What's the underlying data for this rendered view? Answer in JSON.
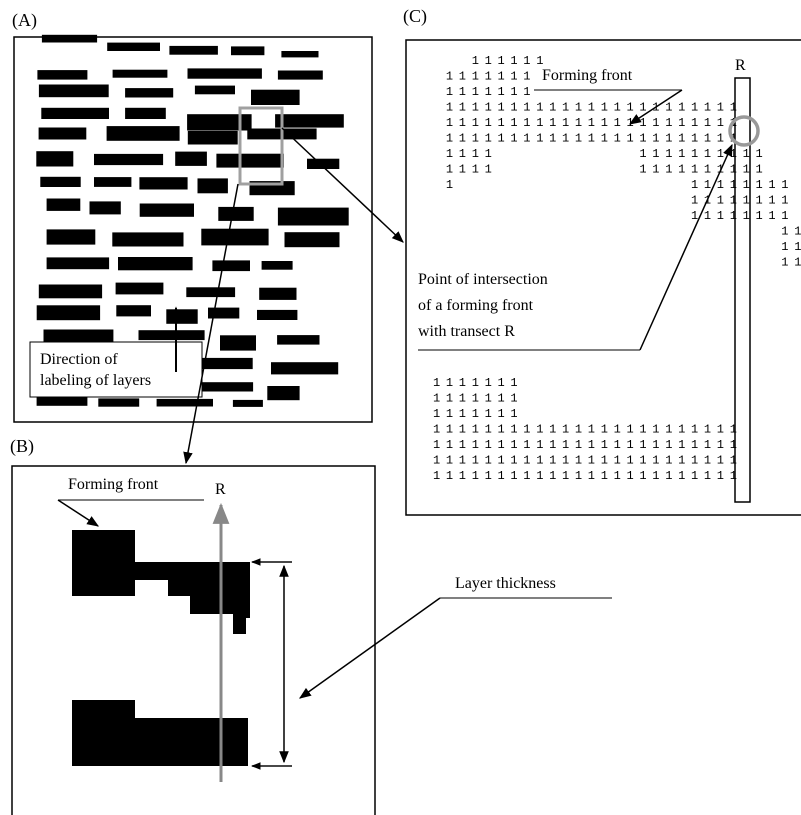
{
  "panels": {
    "a": {
      "label": "(A)",
      "annotation_line1": "Direction of",
      "annotation_line2": "labeling of layers"
    },
    "b": {
      "label": "(B)",
      "forming_front": "Forming front",
      "transect": "R",
      "layer_thickness": "Layer thickness"
    },
    "c": {
      "label": "(C)",
      "forming_front": "Forming front",
      "transect": "R",
      "intersection_line1": "Point of intersection",
      "intersection_line2": "of a forming front",
      "intersection_line3": "with transect R",
      "cell_symbol": "1"
    }
  },
  "grid_c": {
    "top": [
      "...111111.........................",
      ".1111111.........................",
      ".1111111.........................",
      ".11111111111111111111111",
      ".11111111111111111111111",
      ".11111111111111111111111",
      ".1111...........1111111111",
      ".1111...........1111111111",
      ".1..................11111111",
      "....................11111111",
      "....................11111111",
      "...........................11",
      "...........................11",
      "...........................11"
    ],
    "bottom": [
      "1111111",
      "1111111",
      "1111111",
      "111111111111111111111111",
      "111111111111111111111111",
      "111111111111111111111111",
      "111111111111111111111111"
    ]
  }
}
